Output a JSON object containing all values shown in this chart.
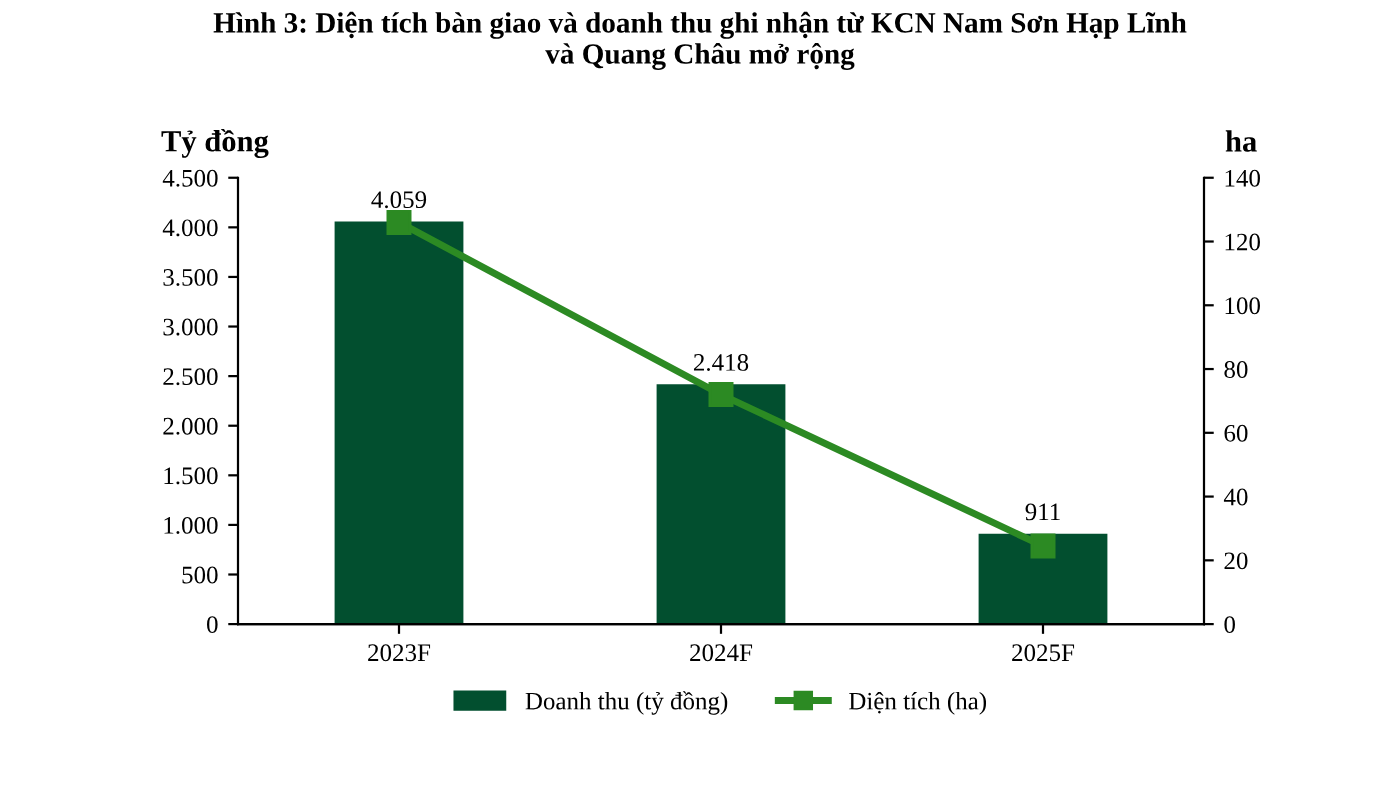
{
  "chart_data": {
    "type": "bar",
    "title": "Hình 3: Diện tích bàn giao và doanh thu ghi nhận từ KCN Nam Sơn Hạp Lĩnh\nvà Quang Châu mở rộng",
    "ylabel": "Tỷ đồng",
    "y2label": "ha",
    "categories": [
      "2023F",
      "2024F",
      "2025F"
    ],
    "series": [
      {
        "name": "Doanh thu (tỷ đồng)",
        "color": "#024f2f",
        "values": [
          4059,
          2418,
          911
        ],
        "value_labels": [
          "4.059",
          "2.418",
          "911"
        ]
      },
      {
        "name": "Diện tích (ha)",
        "type": "line",
        "axis": "y2",
        "color": "#2c8a23",
        "values": [
          126,
          72,
          24.5
        ],
        "marker": "square",
        "line_style": "solid"
      }
    ],
    "ylim": [
      0,
      4500
    ],
    "yticks": [
      0,
      {
        "value": 500,
        "label": "500"
      },
      {
        "value": 1000,
        "label": "1.000"
      },
      {
        "value": 1500,
        "label": "1.500"
      },
      {
        "value": 2000,
        "label": "2.000"
      },
      {
        "value": 2500,
        "label": "2.500"
      },
      {
        "value": 3000,
        "label": "3.000"
      },
      {
        "value": 3500,
        "label": "3.500"
      },
      {
        "value": 4000,
        "label": "4.000"
      },
      {
        "value": 4500,
        "label": "4.500"
      }
    ],
    "y2lim": [
      0,
      140
    ],
    "y2ticks": [
      0,
      20,
      40,
      60,
      80,
      100,
      120,
      140
    ],
    "legend": "bottom",
    "grid": false
  }
}
